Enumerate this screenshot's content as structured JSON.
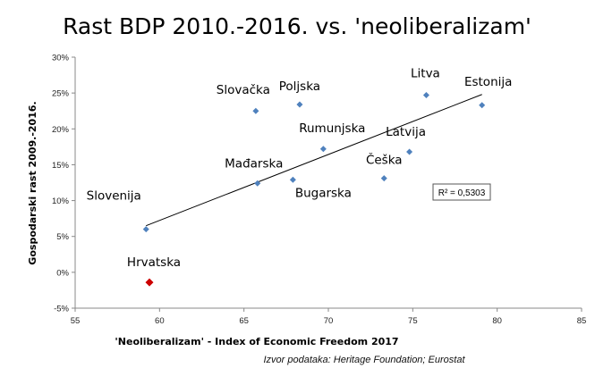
{
  "chart_data": {
    "type": "scatter",
    "title": "Rast BDP 2010.-2016. vs. 'neoliberalizam'",
    "xlabel": "'Neoliberalizam' - Index of Economic Freedom 2017",
    "ylabel": "Gospodarski rast 2009.-2016.",
    "xlim": [
      55,
      85
    ],
    "ylim": [
      -5,
      30
    ],
    "x_ticks": [
      55,
      60,
      65,
      70,
      75,
      80,
      85
    ],
    "y_ticks": [
      -5,
      0,
      5,
      10,
      15,
      20,
      25,
      30
    ],
    "x_tick_labels": [
      "55",
      "60",
      "65",
      "70",
      "75",
      "80",
      "85"
    ],
    "y_tick_labels": [
      "-5%",
      "0%",
      "5%",
      "10%",
      "15%",
      "20%",
      "25%",
      "30%"
    ],
    "grid": false,
    "points": [
      {
        "label": "Slovenija",
        "x": 59.2,
        "y": 6.0,
        "color": "#4f81bd"
      },
      {
        "label": "Hrvatska",
        "x": 59.4,
        "y": -1.4,
        "color": "#cc0000"
      },
      {
        "label": "Mađarska",
        "x": 65.8,
        "y": 12.4,
        "color": "#4f81bd"
      },
      {
        "label": "Slovačka",
        "x": 65.7,
        "y": 22.5,
        "color": "#4f81bd"
      },
      {
        "label": "Bugarska",
        "x": 67.9,
        "y": 12.9,
        "color": "#4f81bd"
      },
      {
        "label": "Poljska",
        "x": 68.3,
        "y": 23.4,
        "color": "#4f81bd"
      },
      {
        "label": "Rumunjska",
        "x": 69.7,
        "y": 17.2,
        "color": "#4f81bd"
      },
      {
        "label": "Češka",
        "x": 73.3,
        "y": 13.1,
        "color": "#4f81bd"
      },
      {
        "label": "Latvija",
        "x": 74.8,
        "y": 16.8,
        "color": "#4f81bd"
      },
      {
        "label": "Litva",
        "x": 75.8,
        "y": 24.7,
        "color": "#4f81bd"
      },
      {
        "label": "Estonija",
        "x": 79.1,
        "y": 23.3,
        "color": "#4f81bd"
      }
    ],
    "trendline": {
      "x": [
        59.2,
        79.1
      ],
      "y": [
        6.5,
        24.8
      ],
      "color": "#000000"
    },
    "r_squared_label": "R² = 0,5303",
    "source": "Izvor podataka: Heritage Foundation; Eurostat"
  }
}
